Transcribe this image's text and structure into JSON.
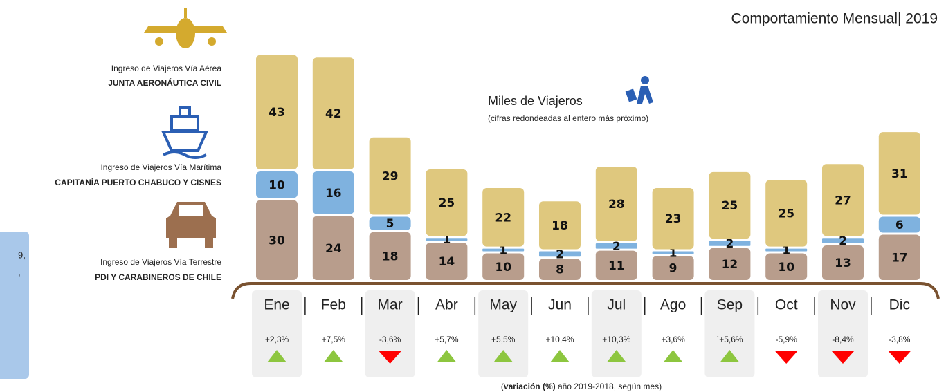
{
  "chart_data": {
    "type": "bar",
    "stacked": true,
    "title": "Comportamiento Mensual| 2019",
    "unit_title": "Miles de Viajeros",
    "unit_note": "(cifras redondeadas al  entero más próximo)",
    "categories": [
      "Ene",
      "Feb",
      "Mar",
      "Abr",
      "May",
      "Jun",
      "Jul",
      "Ago",
      "Sep",
      "Oct",
      "Nov",
      "Dic"
    ],
    "series": [
      {
        "name": "Ingreso de Viajeros Vía Aérea",
        "source": "JUNTA AERONÁUTICA CIVIL",
        "color": "#dfc87e",
        "values": [
          43,
          42,
          29,
          25,
          22,
          18,
          28,
          23,
          25,
          25,
          27,
          31
        ]
      },
      {
        "name": "Ingreso de Viajeros Vía Marítima",
        "source": "CAPITANÍA PUERTO CHABUCO Y CISNES",
        "color": "#7fb2df",
        "values": [
          10,
          16,
          5,
          1,
          1,
          2,
          2,
          1,
          2,
          1,
          2,
          6
        ]
      },
      {
        "name": "Ingreso de Viajeros Vía Terrestre",
        "source": "PDI Y CARABINEROS DE CHILE",
        "color": "#b89d8c",
        "values": [
          30,
          24,
          18,
          14,
          10,
          8,
          11,
          9,
          12,
          10,
          13,
          17
        ]
      }
    ],
    "variation": {
      "values": [
        2.3,
        7.5,
        -3.6,
        5.7,
        5.5,
        10.4,
        10.3,
        3.6,
        5.6,
        -5.9,
        -8.4,
        -3.8
      ],
      "value_labels": [
        "+2,3%",
        "+7,5%",
        "-3,6%",
        "+5,7%",
        "+5,5%",
        "+10,4%",
        "+10,3%",
        "+3,6%",
        "´+5,6%",
        "-5,9%",
        "-8,4%",
        "-3,8%"
      ],
      "up_color": "#8dc63f",
      "down_color": "#ff0000"
    },
    "footnote": {
      "open": "(",
      "bold": "variación (%)",
      "rest": " año 2019-2018, según mes)"
    },
    "side_panel": [
      "9,",
      ","
    ]
  }
}
